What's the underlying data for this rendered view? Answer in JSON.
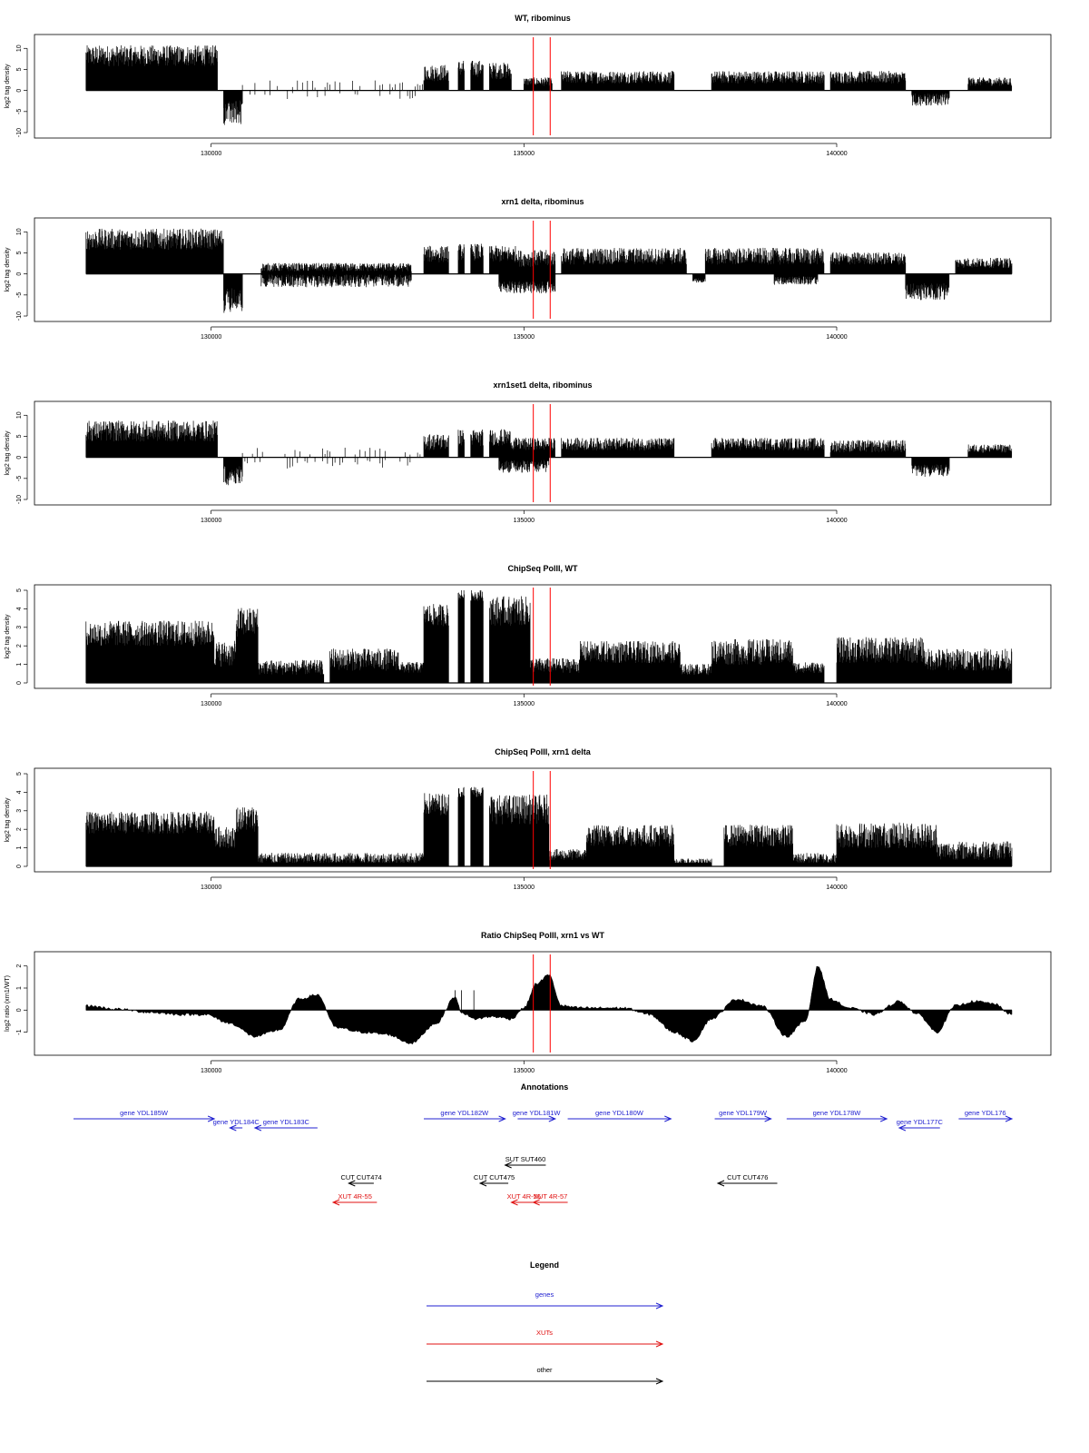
{
  "chart_data": [
    {
      "type": "bar",
      "title": "WT, ribominus",
      "ylabel": "log2 tag density",
      "xlim": [
        127800,
        142800
      ],
      "ylim": [
        -10,
        12
      ],
      "yticks": [
        -10,
        -5,
        0,
        5,
        10
      ],
      "xticks": [
        130000,
        135000,
        140000
      ],
      "markers_x": [
        135150,
        135420
      ],
      "pos_segments": [
        {
          "from": 128000,
          "to": 130100,
          "level": 8,
          "noise": 2.5
        },
        {
          "from": 133400,
          "to": 133800,
          "level": 4,
          "noise": 2
        },
        {
          "from": 133950,
          "to": 134050,
          "level": 5,
          "noise": 2
        },
        {
          "from": 134150,
          "to": 134350,
          "level": 5,
          "noise": 2
        },
        {
          "from": 134450,
          "to": 134800,
          "level": 4.5,
          "noise": 2
        },
        {
          "from": 135000,
          "to": 135450,
          "level": 2,
          "noise": 1
        },
        {
          "from": 135600,
          "to": 137400,
          "level": 3,
          "noise": 1.5
        },
        {
          "from": 138000,
          "to": 139800,
          "level": 3,
          "noise": 1.5
        },
        {
          "from": 139900,
          "to": 141100,
          "level": 3,
          "noise": 1.5
        },
        {
          "from": 142100,
          "to": 142800,
          "level": 2,
          "noise": 1
        }
      ],
      "neg_segments": [
        {
          "from": 130200,
          "to": 130500,
          "level": 5,
          "noise": 3
        },
        {
          "from": 141200,
          "to": 141800,
          "level": 2,
          "noise": 1.5
        }
      ],
      "sparse_pos": [
        {
          "from": 130500,
          "to": 133400,
          "level": 1.5
        }
      ],
      "sparse_neg": [
        {
          "from": 130500,
          "to": 133400,
          "level": 1.2
        }
      ]
    },
    {
      "type": "bar",
      "title": "xrn1 delta, ribominus",
      "ylabel": "log2 tag density",
      "xlim": [
        127800,
        142800
      ],
      "ylim": [
        -10,
        12
      ],
      "yticks": [
        -10,
        -5,
        0,
        5,
        10
      ],
      "xticks": [
        130000,
        135000,
        140000
      ],
      "markers_x": [
        135150,
        135420
      ],
      "pos_segments": [
        {
          "from": 128000,
          "to": 130200,
          "level": 8,
          "noise": 2.5
        },
        {
          "from": 130800,
          "to": 133200,
          "level": 1.5,
          "noise": 1
        },
        {
          "from": 133400,
          "to": 133800,
          "level": 4.5,
          "noise": 2
        },
        {
          "from": 133950,
          "to": 134050,
          "level": 5,
          "noise": 2
        },
        {
          "from": 134150,
          "to": 134350,
          "level": 5,
          "noise": 2
        },
        {
          "from": 134450,
          "to": 134900,
          "level": 4.5,
          "noise": 2
        },
        {
          "from": 134900,
          "to": 135500,
          "level": 3.5,
          "noise": 2
        },
        {
          "from": 135600,
          "to": 137600,
          "level": 4,
          "noise": 2
        },
        {
          "from": 137900,
          "to": 139800,
          "level": 4,
          "noise": 2
        },
        {
          "from": 139900,
          "to": 141100,
          "level": 3.5,
          "noise": 1.5
        },
        {
          "from": 141900,
          "to": 142800,
          "level": 2.5,
          "noise": 1.2
        }
      ],
      "neg_segments": [
        {
          "from": 130200,
          "to": 130500,
          "level": 6,
          "noise": 3
        },
        {
          "from": 130800,
          "to": 133200,
          "level": 1.5,
          "noise": 1.5
        },
        {
          "from": 134600,
          "to": 135500,
          "level": 3,
          "noise": 1.5
        },
        {
          "from": 137700,
          "to": 137900,
          "level": 1.5,
          "noise": 0.5
        },
        {
          "from": 139000,
          "to": 139700,
          "level": 1.5,
          "noise": 1
        },
        {
          "from": 141100,
          "to": 141800,
          "level": 4,
          "noise": 2
        }
      ],
      "sparse_pos": [],
      "sparse_neg": []
    },
    {
      "type": "bar",
      "title": "xrn1set1 delta, ribominus",
      "ylabel": "log2 tag density",
      "xlim": [
        127800,
        142800
      ],
      "ylim": [
        -10,
        12
      ],
      "yticks": [
        -10,
        -5,
        0,
        5,
        10
      ],
      "xticks": [
        130000,
        135000,
        140000
      ],
      "markers_x": [
        135150,
        135420
      ],
      "pos_segments": [
        {
          "from": 128000,
          "to": 130100,
          "level": 6,
          "noise": 2.5
        },
        {
          "from": 133400,
          "to": 133800,
          "level": 3.5,
          "noise": 2
        },
        {
          "from": 133950,
          "to": 134050,
          "level": 4.5,
          "noise": 2
        },
        {
          "from": 134150,
          "to": 134350,
          "level": 4.5,
          "noise": 2
        },
        {
          "from": 134450,
          "to": 134800,
          "level": 4.5,
          "noise": 2
        },
        {
          "from": 134800,
          "to": 135500,
          "level": 3,
          "noise": 1.5
        },
        {
          "from": 135600,
          "to": 137400,
          "level": 3,
          "noise": 1.5
        },
        {
          "from": 138000,
          "to": 139800,
          "level": 3,
          "noise": 1.5
        },
        {
          "from": 139900,
          "to": 141100,
          "level": 2.5,
          "noise": 1.5
        },
        {
          "from": 142100,
          "to": 142800,
          "level": 2,
          "noise": 1
        }
      ],
      "neg_segments": [
        {
          "from": 130200,
          "to": 130500,
          "level": 4,
          "noise": 2.5
        },
        {
          "from": 134600,
          "to": 135400,
          "level": 2,
          "noise": 1.5
        },
        {
          "from": 141200,
          "to": 141800,
          "level": 3,
          "noise": 1.5
        }
      ],
      "sparse_pos": [
        {
          "from": 130500,
          "to": 133400,
          "level": 1.5
        }
      ],
      "sparse_neg": [
        {
          "from": 130500,
          "to": 133400,
          "level": 1.5
        }
      ]
    },
    {
      "type": "bar",
      "title": "ChipSeq PolII, WT",
      "ylabel": "log2 tag density",
      "xlim": [
        127800,
        142800
      ],
      "ylim": [
        0,
        5
      ],
      "yticks": [
        0,
        1,
        2,
        3,
        4,
        5
      ],
      "xticks": [
        130000,
        135000,
        140000
      ],
      "markers_x": [
        135150,
        135420
      ],
      "pos_segments": [
        {
          "from": 128000,
          "to": 130050,
          "level": 2.6,
          "noise": 0.7
        },
        {
          "from": 130050,
          "to": 130400,
          "level": 1.5,
          "noise": 0.7
        },
        {
          "from": 130400,
          "to": 130750,
          "level": 3.2,
          "noise": 0.8
        },
        {
          "from": 130750,
          "to": 131800,
          "level": 0.8,
          "noise": 0.4
        },
        {
          "from": 131900,
          "to": 133000,
          "level": 1.2,
          "noise": 0.6
        },
        {
          "from": 133000,
          "to": 133400,
          "level": 0.8,
          "noise": 0.3
        },
        {
          "from": 133400,
          "to": 133800,
          "level": 3.6,
          "noise": 0.6
        },
        {
          "from": 133950,
          "to": 134050,
          "level": 4.7,
          "noise": 0.3
        },
        {
          "from": 134150,
          "to": 134350,
          "level": 4.7,
          "noise": 0.3
        },
        {
          "from": 134450,
          "to": 135100,
          "level": 3.8,
          "noise": 0.8
        },
        {
          "from": 135100,
          "to": 135900,
          "level": 0.9,
          "noise": 0.4
        },
        {
          "from": 135900,
          "to": 137500,
          "level": 1.6,
          "noise": 0.6
        },
        {
          "from": 137500,
          "to": 138000,
          "level": 0.7,
          "noise": 0.3
        },
        {
          "from": 138000,
          "to": 139300,
          "level": 1.6,
          "noise": 0.7
        },
        {
          "from": 139300,
          "to": 139800,
          "level": 0.8,
          "noise": 0.3
        },
        {
          "from": 140000,
          "to": 141400,
          "level": 1.7,
          "noise": 0.7
        },
        {
          "from": 141400,
          "to": 142800,
          "level": 1.2,
          "noise": 0.6
        }
      ],
      "neg_segments": [],
      "sparse_pos": [],
      "sparse_neg": []
    },
    {
      "type": "bar",
      "title": "ChipSeq PolII, xrn1 delta",
      "ylabel": "log2 tag density",
      "xlim": [
        127800,
        142800
      ],
      "ylim": [
        0,
        5
      ],
      "yticks": [
        0,
        1,
        2,
        3,
        4,
        5
      ],
      "xticks": [
        130000,
        135000,
        140000
      ],
      "markers_x": [
        135150,
        135420
      ],
      "pos_segments": [
        {
          "from": 128000,
          "to": 130050,
          "level": 2.3,
          "noise": 0.6
        },
        {
          "from": 130050,
          "to": 130400,
          "level": 1.5,
          "noise": 0.6
        },
        {
          "from": 130400,
          "to": 130750,
          "level": 2.5,
          "noise": 0.7
        },
        {
          "from": 130750,
          "to": 133400,
          "level": 0.4,
          "noise": 0.3
        },
        {
          "from": 133400,
          "to": 133800,
          "level": 3.3,
          "noise": 0.6
        },
        {
          "from": 133950,
          "to": 134050,
          "level": 4.0,
          "noise": 0.3
        },
        {
          "from": 134150,
          "to": 134350,
          "level": 4.0,
          "noise": 0.3
        },
        {
          "from": 134450,
          "to": 135400,
          "level": 3.0,
          "noise": 0.8
        },
        {
          "from": 135400,
          "to": 136000,
          "level": 0.6,
          "noise": 0.3
        },
        {
          "from": 136000,
          "to": 137400,
          "level": 1.6,
          "noise": 0.6
        },
        {
          "from": 137400,
          "to": 138000,
          "level": 0.2,
          "noise": 0.2
        },
        {
          "from": 138200,
          "to": 139300,
          "level": 1.6,
          "noise": 0.6
        },
        {
          "from": 139300,
          "to": 140000,
          "level": 0.4,
          "noise": 0.3
        },
        {
          "from": 140000,
          "to": 141600,
          "level": 1.6,
          "noise": 0.7
        },
        {
          "from": 141600,
          "to": 142800,
          "level": 0.8,
          "noise": 0.5
        }
      ],
      "neg_segments": [],
      "sparse_pos": [],
      "sparse_neg": []
    },
    {
      "type": "area",
      "title": "Ratio ChipSeq PolII, xrn1 vs WT",
      "ylabel": "log2 ratio (xrn1/WT)",
      "xlim": [
        127800,
        142800
      ],
      "ylim": [
        -1.8,
        2.4
      ],
      "yticks": [
        -1,
        0,
        1,
        2
      ],
      "xticks": [
        130000,
        135000,
        140000
      ],
      "markers_x": [
        135150,
        135420
      ],
      "x": [
        128000,
        128500,
        129000,
        129500,
        129900,
        130300,
        130700,
        131100,
        131400,
        131700,
        132000,
        132400,
        132800,
        133200,
        133600,
        133900,
        134000,
        134200,
        134500,
        134800,
        135000,
        135200,
        135400,
        135600,
        135900,
        136200,
        136600,
        137000,
        137400,
        137700,
        138000,
        138400,
        138800,
        139200,
        139500,
        139700,
        139900,
        140200,
        140600,
        141000,
        141300,
        141600,
        141900,
        142200,
        142500,
        142800
      ],
      "y": [
        0.2,
        0.05,
        -0.1,
        -0.2,
        -0.2,
        -0.6,
        -1.2,
        -0.9,
        0.5,
        0.7,
        -0.8,
        -1.0,
        -1.1,
        -1.5,
        -0.6,
        0.6,
        -0.1,
        -0.4,
        -0.3,
        -0.4,
        0.1,
        1.2,
        1.6,
        0.2,
        0.1,
        0.1,
        0.1,
        -0.2,
        -1.0,
        -1.4,
        -0.4,
        0.5,
        0.2,
        -1.2,
        -0.5,
        2.0,
        0.5,
        0.1,
        -0.2,
        0.4,
        -0.2,
        -1.0,
        0.2,
        0.4,
        0.3,
        -0.2
      ]
    }
  ],
  "annotations": {
    "title": "Annotations",
    "features": [
      {
        "label": "gene YDL185W",
        "type": "gene",
        "dir": "right",
        "start": 127800,
        "end": 130050,
        "row": 0
      },
      {
        "label": "gene YDL184C",
        "type": "gene",
        "dir": "left",
        "start": 130300,
        "end": 130500,
        "row": 1
      },
      {
        "label": "gene YDL183C",
        "type": "gene",
        "dir": "left",
        "start": 130700,
        "end": 131700,
        "row": 1
      },
      {
        "label": "gene YDL182W",
        "type": "gene",
        "dir": "right",
        "start": 133400,
        "end": 134700,
        "row": 0
      },
      {
        "label": "gene YDL181W",
        "type": "gene",
        "dir": "right",
        "start": 134900,
        "end": 135500,
        "row": 0
      },
      {
        "label": "gene YDL180W",
        "type": "gene",
        "dir": "right",
        "start": 135700,
        "end": 137350,
        "row": 0
      },
      {
        "label": "gene YDL179W",
        "type": "gene",
        "dir": "right",
        "start": 138050,
        "end": 138950,
        "row": 0
      },
      {
        "label": "gene YDL178W",
        "type": "gene",
        "dir": "right",
        "start": 139200,
        "end": 140800,
        "row": 0
      },
      {
        "label": "gene YDL177C",
        "type": "gene",
        "dir": "left",
        "start": 141000,
        "end": 141650,
        "row": 1
      },
      {
        "label": "gene YDL176",
        "type": "gene",
        "dir": "right",
        "start": 141950,
        "end": 142800,
        "row": 0
      },
      {
        "label": "SUT SUT460",
        "type": "other",
        "dir": "left",
        "start": 134700,
        "end": 135350,
        "row": 2
      },
      {
        "label": "CUT CUT474",
        "type": "other",
        "dir": "left",
        "start": 132200,
        "end": 132600,
        "row": 3
      },
      {
        "label": "CUT CUT475",
        "type": "other",
        "dir": "left",
        "start": 134300,
        "end": 134750,
        "row": 3
      },
      {
        "label": "CUT CUT476",
        "type": "other",
        "dir": "left",
        "start": 138100,
        "end": 139050,
        "row": 3
      },
      {
        "label": "XUT 4R-55",
        "type": "xut",
        "dir": "left",
        "start": 131950,
        "end": 132650,
        "row": 4
      },
      {
        "label": "XUT 4R-56",
        "type": "xut",
        "dir": "left",
        "start": 134800,
        "end": 135200,
        "row": 4
      },
      {
        "label": "XUT 4R-57",
        "type": "xut",
        "dir": "left",
        "start": 135150,
        "end": 135700,
        "row": 4
      }
    ]
  },
  "legend": {
    "title": "Legend",
    "items": [
      {
        "label": "genes",
        "type": "gene"
      },
      {
        "label": "XUTs",
        "type": "xut"
      },
      {
        "label": "other",
        "type": "other"
      }
    ]
  },
  "colors": {
    "gene": "#2020d0",
    "xut": "#e01010",
    "other": "#000000",
    "marker": "#ff0000",
    "bars": "#000000"
  }
}
